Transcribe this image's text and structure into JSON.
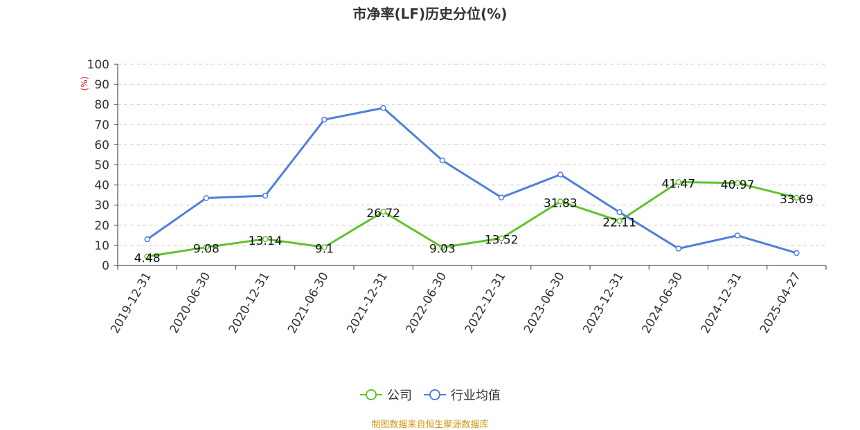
{
  "title": "市净率(LF)历史分位(%)",
  "y_unit": "(%)",
  "source": "制图数据来自恒生聚源数据库",
  "colors": {
    "company": "#5ec32c",
    "industry": "#4f7fdc",
    "unit": "#e02020",
    "source": "#d4930f"
  },
  "chart_data": {
    "type": "line",
    "title": "市净率(LF)历史分位(%)",
    "ylabel": "(%)",
    "ylim": [
      0,
      100
    ],
    "yticks": [
      0,
      10,
      20,
      30,
      40,
      50,
      60,
      70,
      80,
      90,
      100
    ],
    "grid": true,
    "legend": "bottom",
    "categories": [
      "2019-12-31",
      "2020-06-30",
      "2020-12-31",
      "2021-06-30",
      "2021-12-31",
      "2022-06-30",
      "2022-12-31",
      "2023-06-30",
      "2023-12-31",
      "2024-06-30",
      "2024-12-31",
      "2025-04-27"
    ],
    "series": [
      {
        "name": "公司",
        "color": "#5ec32c",
        "show_labels": true,
        "values": [
          4.48,
          9.08,
          13.14,
          9.1,
          26.72,
          9.03,
          13.52,
          31.83,
          22.11,
          41.47,
          40.97,
          33.69
        ]
      },
      {
        "name": "行业均值",
        "color": "#4f7fdc",
        "show_labels": false,
        "values": [
          13,
          33.5,
          34.7,
          72.5,
          78.3,
          52.2,
          33.8,
          45.2,
          26.5,
          8.4,
          14.9,
          6.2
        ]
      }
    ]
  }
}
